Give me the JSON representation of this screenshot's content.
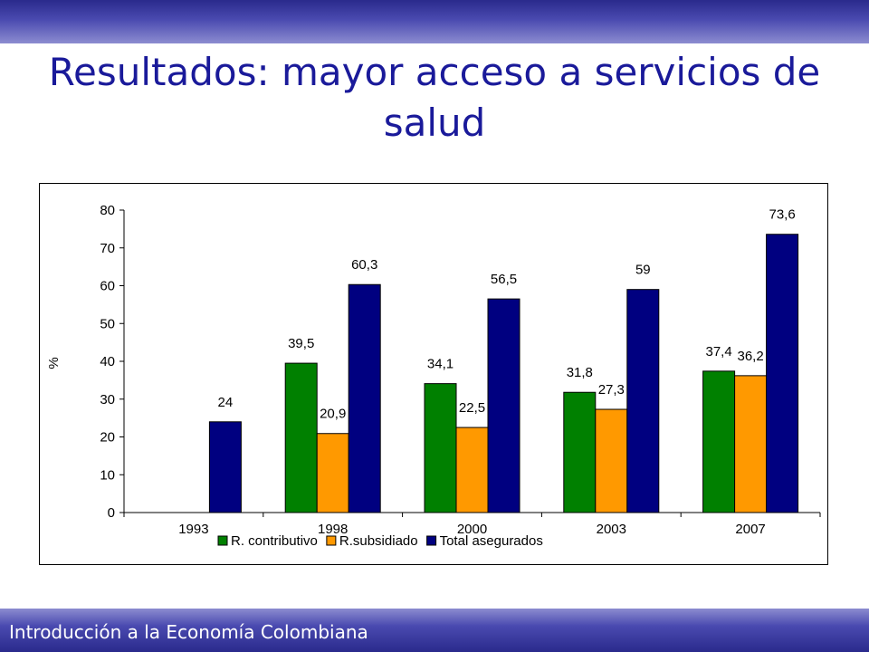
{
  "slide": {
    "title": "Resultados: mayor acceso a servicios de salud",
    "footer": "Introducción a la Economía Colombiana",
    "accent_color": "#1a1a9a",
    "band_color": "#2a2a8c"
  },
  "chart_data": {
    "type": "bar",
    "categories": [
      "1993",
      "1998",
      "2000",
      "2003",
      "2007"
    ],
    "series": [
      {
        "name": "R. contributivo",
        "color": "#008000",
        "values": [
          null,
          39.5,
          34.1,
          31.8,
          37.4
        ],
        "labels": [
          "",
          "39,5",
          "34,1",
          "31,8",
          "37,4"
        ]
      },
      {
        "name": "R.subsidiado",
        "color": "#ff9900",
        "values": [
          null,
          20.9,
          22.5,
          27.3,
          36.2
        ],
        "labels": [
          "",
          "20,9",
          "22,5",
          "27,3",
          "36,2"
        ]
      },
      {
        "name": "Total asegurados",
        "color": "#000080",
        "values": [
          24,
          60.3,
          56.5,
          59,
          73.6
        ],
        "labels": [
          "24",
          "60,3",
          "56,5",
          "59",
          "73,6"
        ]
      }
    ],
    "ylabel": "%",
    "ylim": [
      0,
      80
    ],
    "yticks": [
      0,
      10,
      20,
      30,
      40,
      50,
      60,
      70,
      80
    ],
    "legend_position": "bottom",
    "grid": false
  }
}
